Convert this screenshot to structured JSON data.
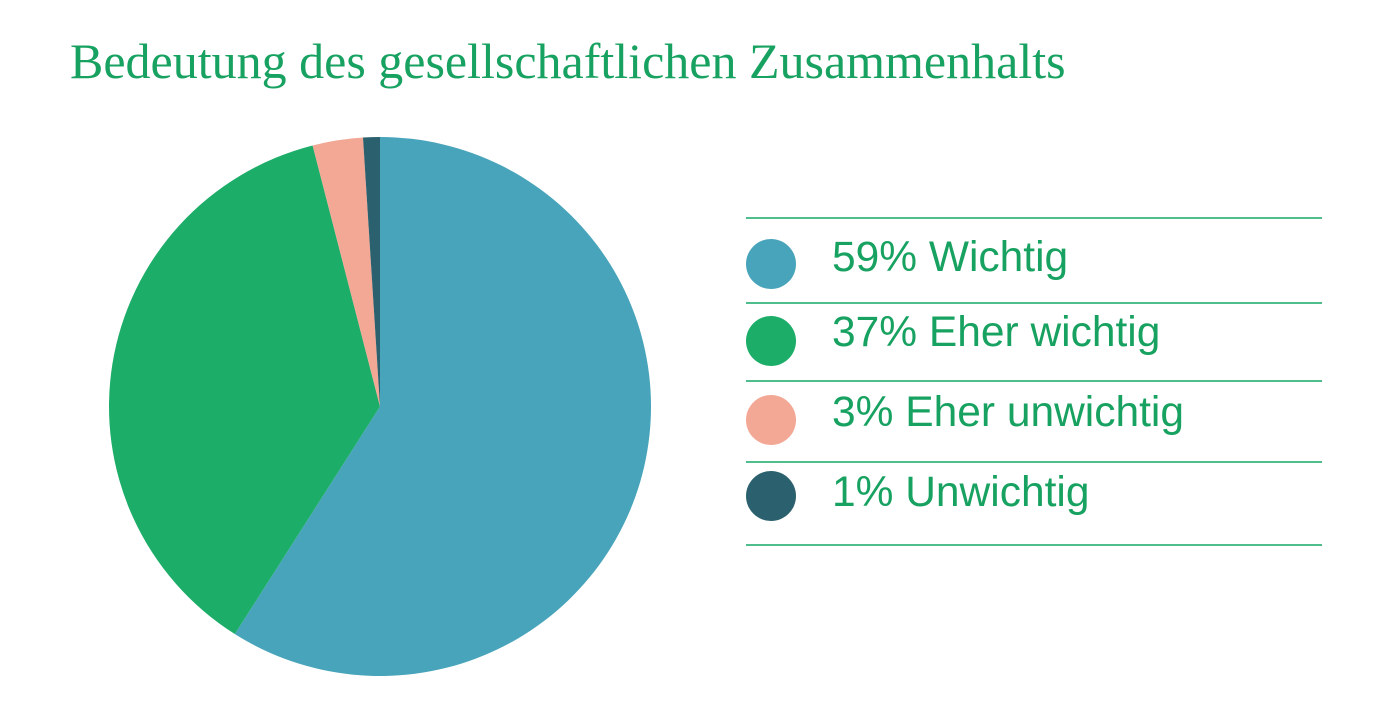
{
  "title": {
    "text": "Bedeutung des gesellschaftlichen Zusammenhalts"
  },
  "chart_data": {
    "type": "pie",
    "title": "Bedeutung des gesellschaftlichen Zusammenhalts",
    "categories": [
      "Wichtig",
      "Eher wichtig",
      "Eher unwichtig",
      "Unwichtig"
    ],
    "values": [
      59,
      37,
      3,
      1
    ],
    "unit": "%",
    "colors": [
      "#48A4BA",
      "#1CAD68",
      "#F3A795",
      "#2B616E"
    ],
    "start_angle_deg": 0,
    "direction": "clockwise",
    "legend_position": "right"
  },
  "legend": {
    "items": [
      {
        "text": "59% Wichtig",
        "value": 59,
        "label": "Wichtig",
        "color": "#48A4BA"
      },
      {
        "text": "37% Eher wichtig",
        "value": 37,
        "label": "Eher wichtig",
        "color": "#1CAD68"
      },
      {
        "text": "3% Eher unwichtig",
        "value": 3,
        "label": "Eher unwichtig",
        "color": "#F3A795"
      },
      {
        "text": "1% Unwichtig",
        "value": 1,
        "label": "Unwichtig",
        "color": "#2B616E"
      }
    ]
  },
  "colors": {
    "text_green": "#18A261",
    "divider_green": "#50BE8C",
    "background": "#FFFFFF"
  }
}
